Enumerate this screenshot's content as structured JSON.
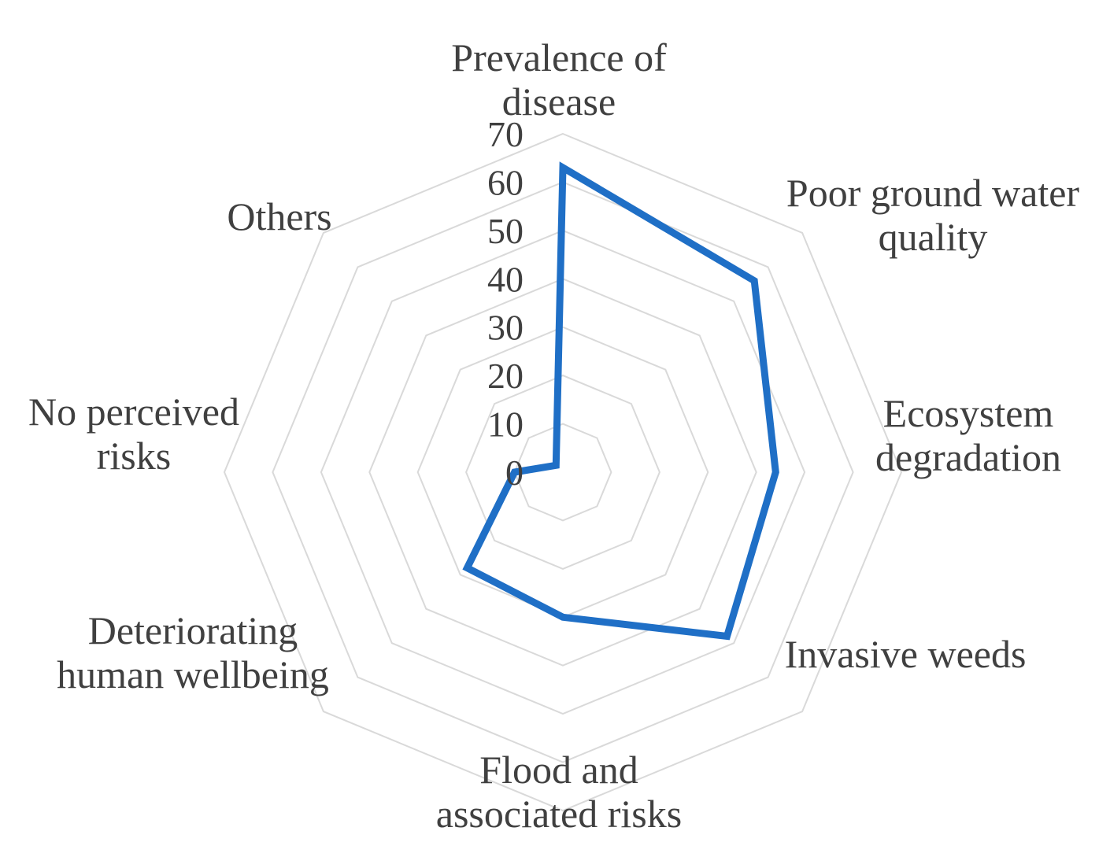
{
  "chart_data": {
    "type": "radar",
    "categories": [
      [
        "Prevalence of",
        "disease"
      ],
      [
        "Poor ground water",
        "quality"
      ],
      [
        "Ecosystem",
        "degradation"
      ],
      [
        "Invasive weeds"
      ],
      [
        "Flood and",
        "associated risks"
      ],
      [
        "Deteriorating",
        "human wellbeing"
      ],
      [
        "No perceived",
        "risks"
      ],
      [
        "Others"
      ]
    ],
    "values": [
      63,
      56,
      44,
      48,
      30,
      28,
      10,
      2
    ],
    "rlim": [
      0,
      70
    ],
    "ticks": [
      0,
      10,
      20,
      30,
      40,
      50,
      60,
      70
    ],
    "grid": true,
    "legend": "none",
    "colors": {
      "series": "#1f6fc6",
      "grid": "#d9d9d9",
      "text": "#404040"
    }
  }
}
